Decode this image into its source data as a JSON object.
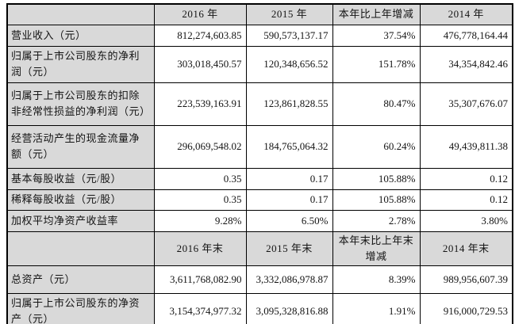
{
  "colors": {
    "header_bg": "#d9d9d9",
    "label_bg": "#d9d9d9",
    "cell_bg": "#ffffff",
    "border": "#000000",
    "text": "#141414"
  },
  "table": {
    "section1": {
      "headers": [
        "",
        "2016 年",
        "2015 年",
        "本年比上年增减",
        "2014 年"
      ],
      "rows": [
        {
          "label": "营业收入（元）",
          "y2016": "812,274,603.85",
          "y2015": "590,573,137.17",
          "change": "37.54%",
          "y2014": "476,778,164.44"
        },
        {
          "label": "归属于上市公司股东的净利\n润（元）",
          "y2016": "303,018,450.57",
          "y2015": "120,348,656.52",
          "change": "151.78%",
          "y2014": "34,354,842.46"
        },
        {
          "label": "归属于上市公司股东的扣除\n非经常性损益的净利润（元）",
          "y2016": "223,539,163.91",
          "y2015": "123,861,828.55",
          "change": "80.47%",
          "y2014": "35,307,676.07"
        },
        {
          "label": "经营活动产生的现金流量净\n额（元）",
          "y2016": "296,069,548.02",
          "y2015": "184,765,064.32",
          "change": "60.24%",
          "y2014": "49,439,811.38"
        },
        {
          "label": "基本每股收益（元/股）",
          "y2016": "0.35",
          "y2015": "0.17",
          "change": "105.88%",
          "y2014": "0.12"
        },
        {
          "label": "稀释每股收益（元/股）",
          "y2016": "0.35",
          "y2015": "0.17",
          "change": "105.88%",
          "y2014": "0.12"
        },
        {
          "label": "加权平均净资产收益率",
          "y2016": "9.28%",
          "y2015": "6.50%",
          "change": "2.78%",
          "y2014": "3.80%"
        }
      ]
    },
    "section2": {
      "headers": [
        "",
        "2016 年末",
        "2015 年末",
        "本年末比上年末\n增减",
        "2014 年末"
      ],
      "rows": [
        {
          "label": "总资产（元）",
          "y2016": "3,611,768,082.90",
          "y2015": "3,332,086,978.87",
          "change": "8.39%",
          "y2014": "989,956,607.39"
        },
        {
          "label": "归属于上市公司股东的净资\n产（元）",
          "y2016": "3,154,374,977.32",
          "y2015": "3,095,328,816.88",
          "change": "1.91%",
          "y2014": "916,000,729.53"
        }
      ]
    }
  }
}
